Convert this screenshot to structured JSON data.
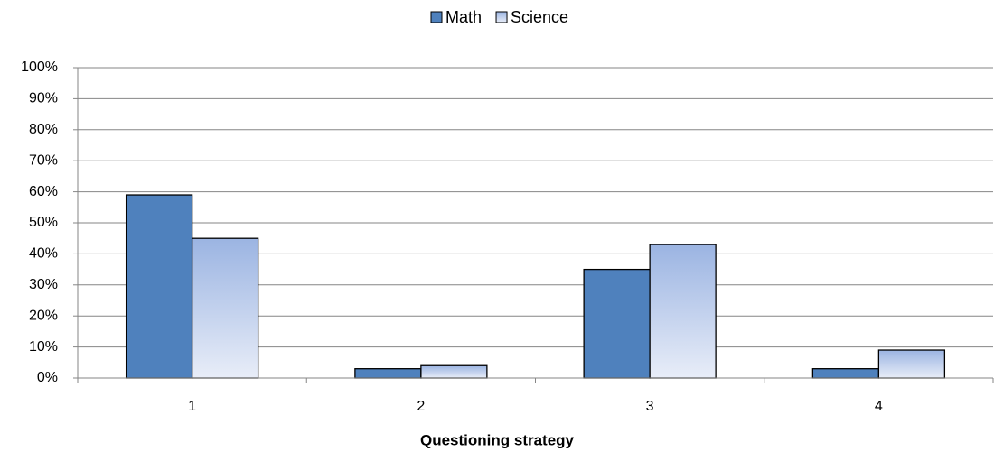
{
  "chart_data": {
    "type": "bar",
    "x_label": "Questioning strategy",
    "categories": [
      "1",
      "2",
      "3",
      "4"
    ],
    "series": [
      {
        "name": "Math",
        "color": "#4f81bd",
        "values": [
          59,
          3,
          35,
          3
        ]
      },
      {
        "name": "Science",
        "color": "#a4bbe4",
        "values": [
          45,
          4,
          43,
          9
        ]
      }
    ],
    "ylim": [
      0,
      100
    ],
    "yticks": [
      {
        "value": 0,
        "label": "0%"
      },
      {
        "value": 10,
        "label": "10%"
      },
      {
        "value": 20,
        "label": "20%"
      },
      {
        "value": 30,
        "label": "30%"
      },
      {
        "value": 40,
        "label": "40%"
      },
      {
        "value": 50,
        "label": "50%"
      },
      {
        "value": 60,
        "label": "60%"
      },
      {
        "value": 70,
        "label": "70%"
      },
      {
        "value": 80,
        "label": "80%"
      },
      {
        "value": 90,
        "label": "90%"
      },
      {
        "value": 100,
        "label": "100%"
      }
    ],
    "grid": true,
    "legend": "top"
  }
}
